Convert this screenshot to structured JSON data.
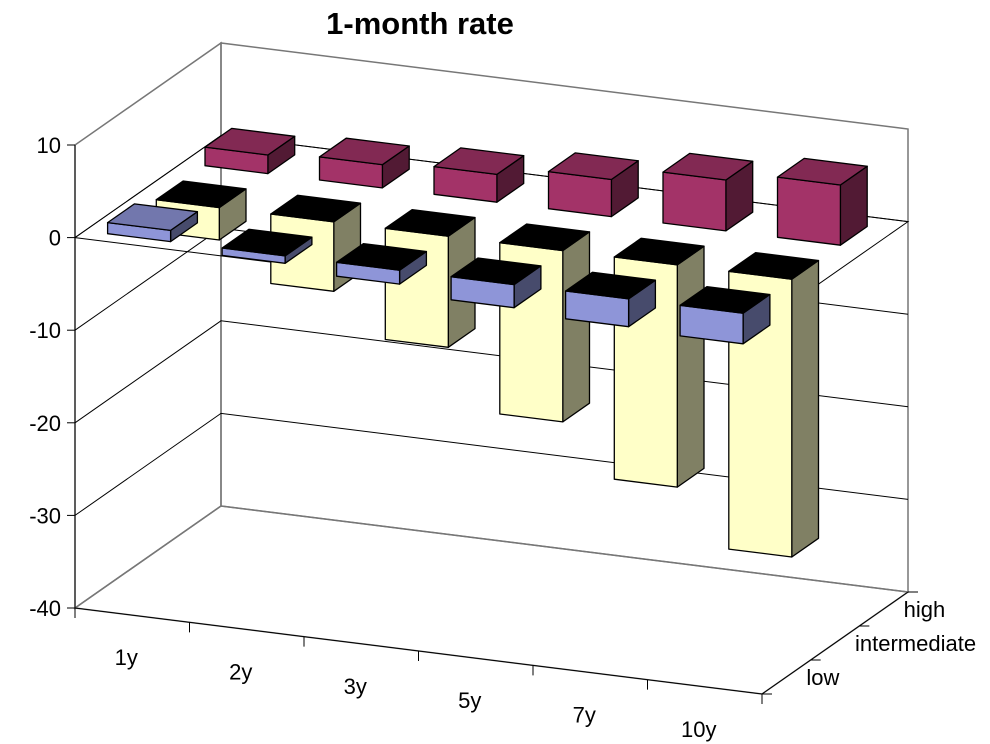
{
  "chart_data": {
    "type": "bar",
    "subtype": "3d-clustered-depth",
    "title": "1-month rate",
    "categories": [
      "1y",
      "2y",
      "3y",
      "5y",
      "7y",
      "10y"
    ],
    "depth_categories": [
      "low",
      "intermediate",
      "high"
    ],
    "series": [
      {
        "name": "low",
        "values": [
          1.2,
          -0.8,
          -1.5,
          -2.5,
          -3.0,
          -3.3
        ],
        "color": "#8e95d8"
      },
      {
        "name": "intermediate",
        "values": [
          -3.5,
          -7.5,
          -12.0,
          -18.5,
          -24.0,
          -30.0
        ],
        "color": "#ffffc8"
      },
      {
        "name": "high",
        "values": [
          2.0,
          2.5,
          3.0,
          4.0,
          5.5,
          6.5
        ],
        "color": "#a33368"
      }
    ],
    "yticks": [
      10,
      0,
      -10,
      -20,
      -30,
      -40
    ],
    "ylim": [
      -40,
      10
    ],
    "grid": true,
    "legend": "none"
  }
}
